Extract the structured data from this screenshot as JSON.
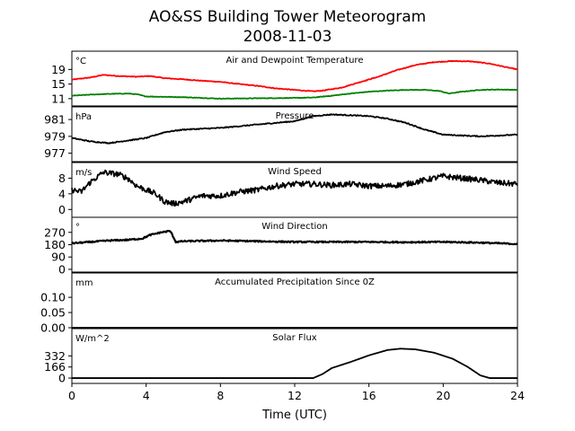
{
  "figure": {
    "title_line1": "AO&SS Building Tower Meteorogram",
    "title_line2": "2008-11-03",
    "xlabel": "Time (UTC)"
  },
  "chart_data": {
    "type": "line",
    "x_axis": {
      "label": "Time (UTC)",
      "range": [
        0,
        24
      ],
      "ticks": [
        0,
        4,
        8,
        12,
        16,
        20,
        24
      ]
    },
    "panels": [
      {
        "id": "temp",
        "title": "Air and Dewpoint Temperature",
        "unit": "°C",
        "ylim": [
          9,
          24
        ],
        "yticks": [
          11,
          15,
          19
        ],
        "series": [
          {
            "color": "#ff0000",
            "noise": 0.1,
            "points": [
              [
                0,
                16.2
              ],
              [
                1,
                16.8
              ],
              [
                1.7,
                17.5
              ],
              [
                2.5,
                17.2
              ],
              [
                3.5,
                17.0
              ],
              [
                4.2,
                17.2
              ],
              [
                5,
                16.6
              ],
              [
                6,
                16.3
              ],
              [
                7,
                15.9
              ],
              [
                8,
                15.6
              ],
              [
                9,
                15.0
              ],
              [
                10,
                14.5
              ],
              [
                11,
                13.8
              ],
              [
                12,
                13.4
              ],
              [
                13,
                13.0
              ],
              [
                13.5,
                13.2
              ],
              [
                14.5,
                14.0
              ],
              [
                15.5,
                15.5
              ],
              [
                16.5,
                17.0
              ],
              [
                17.5,
                18.8
              ],
              [
                18.5,
                20.2
              ],
              [
                19.5,
                21.0
              ],
              [
                20.5,
                21.3
              ],
              [
                21.5,
                21.2
              ],
              [
                22.5,
                20.6
              ],
              [
                23.5,
                19.5
              ],
              [
                24,
                19.0
              ]
            ]
          },
          {
            "color": "#008000",
            "noise": 0.08,
            "points": [
              [
                0,
                11.8
              ],
              [
                1,
                12.1
              ],
              [
                2,
                12.3
              ],
              [
                3,
                12.4
              ],
              [
                3.5,
                12.2
              ],
              [
                4,
                11.6
              ],
              [
                5,
                11.5
              ],
              [
                6,
                11.4
              ],
              [
                7,
                11.2
              ],
              [
                8,
                11.0
              ],
              [
                10,
                11.1
              ],
              [
                12,
                11.2
              ],
              [
                13,
                11.3
              ],
              [
                14,
                11.8
              ],
              [
                15,
                12.4
              ],
              [
                16,
                12.9
              ],
              [
                17,
                13.2
              ],
              [
                18,
                13.4
              ],
              [
                19,
                13.4
              ],
              [
                19.8,
                13.1
              ],
              [
                20.3,
                12.4
              ],
              [
                21,
                12.9
              ],
              [
                22,
                13.4
              ],
              [
                23,
                13.5
              ],
              [
                24,
                13.4
              ]
            ]
          }
        ]
      },
      {
        "id": "pressure",
        "title": "Pressure",
        "unit": "hPa",
        "ylim": [
          976,
          982.5
        ],
        "yticks": [
          977,
          979,
          981
        ],
        "series": [
          {
            "color": "#000000",
            "noise": 0.06,
            "points": [
              [
                0,
                978.8
              ],
              [
                1,
                978.4
              ],
              [
                2,
                978.2
              ],
              [
                3,
                978.5
              ],
              [
                4,
                978.8
              ],
              [
                5,
                979.5
              ],
              [
                6,
                979.8
              ],
              [
                7,
                979.9
              ],
              [
                8,
                980.0
              ],
              [
                9,
                980.2
              ],
              [
                10,
                980.4
              ],
              [
                11,
                980.6
              ],
              [
                12,
                980.8
              ],
              [
                13,
                981.4
              ],
              [
                14,
                981.6
              ],
              [
                15,
                981.5
              ],
              [
                16,
                981.4
              ],
              [
                17,
                981.1
              ],
              [
                18,
                980.6
              ],
              [
                19,
                979.8
              ],
              [
                20,
                979.2
              ],
              [
                21,
                979.1
              ],
              [
                22,
                979.0
              ],
              [
                23,
                979.1
              ],
              [
                24,
                979.2
              ]
            ]
          }
        ]
      },
      {
        "id": "wind_speed",
        "title": "Wind Speed",
        "unit": "m/s",
        "ylim": [
          -2,
          12
        ],
        "yticks": [
          0,
          4,
          8
        ],
        "series": [
          {
            "color": "#000000",
            "noise": 0.7,
            "points": [
              [
                0,
                5
              ],
              [
                0.5,
                4.5
              ],
              [
                1,
                7
              ],
              [
                1.7,
                9.5
              ],
              [
                2.5,
                9
              ],
              [
                3,
                8
              ],
              [
                3.5,
                6
              ],
              [
                4,
                5
              ],
              [
                4.5,
                4
              ],
              [
                5,
                2
              ],
              [
                5.5,
                1.5
              ],
              [
                6,
                2
              ],
              [
                7,
                3.5
              ],
              [
                8,
                3.5
              ],
              [
                9,
                4.5
              ],
              [
                10,
                5
              ],
              [
                11,
                6
              ],
              [
                12,
                6.5
              ],
              [
                13,
                6.5
              ],
              [
                14,
                6.2
              ],
              [
                15,
                6.5
              ],
              [
                16,
                6
              ],
              [
                17,
                6
              ],
              [
                18,
                6.5
              ],
              [
                19,
                7.5
              ],
              [
                20,
                8.5
              ],
              [
                21,
                8
              ],
              [
                22,
                7.5
              ],
              [
                23,
                6.8
              ],
              [
                24,
                6.5
              ]
            ]
          }
        ]
      },
      {
        "id": "wind_dir",
        "title": "Wind Direction",
        "unit": "°",
        "ylim": [
          -20,
          380
        ],
        "yticks": [
          0,
          90,
          180,
          270
        ],
        "series": [
          {
            "color": "#000000",
            "noise": 5,
            "points": [
              [
                0,
                190
              ],
              [
                1,
                200
              ],
              [
                2,
                210
              ],
              [
                3,
                215
              ],
              [
                3.8,
                225
              ],
              [
                4.2,
                250
              ],
              [
                4.8,
                270
              ],
              [
                5.3,
                280
              ],
              [
                5.6,
                200
              ],
              [
                6,
                205
              ],
              [
                8,
                210
              ],
              [
                10,
                205
              ],
              [
                12,
                200
              ],
              [
                14,
                200
              ],
              [
                16,
                200
              ],
              [
                18,
                198
              ],
              [
                20,
                200
              ],
              [
                22,
                195
              ],
              [
                24,
                185
              ]
            ]
          }
        ]
      },
      {
        "id": "precip",
        "title": "Accumulated Precipitation Since 0Z",
        "unit": "mm",
        "ylim": [
          0,
          0.18
        ],
        "yticks": [
          0.0,
          0.05,
          0.1
        ],
        "ytick_labels": [
          "0.00",
          "0.05",
          "0.10"
        ],
        "series": [
          {
            "color": "#000000",
            "noise": 0,
            "points": [
              [
                0,
                0
              ],
              [
                24,
                0
              ]
            ]
          }
        ]
      },
      {
        "id": "solar",
        "title": "Solar Flux",
        "unit": "W/m^2",
        "ylim": [
          -80,
          740
        ],
        "yticks": [
          0,
          166,
          332
        ],
        "series": [
          {
            "color": "#000000",
            "noise": 0,
            "points": [
              [
                0,
                0
              ],
              [
                13,
                0
              ],
              [
                13.5,
                60
              ],
              [
                14,
                150
              ],
              [
                15,
                240
              ],
              [
                16,
                340
              ],
              [
                17,
                420
              ],
              [
                17.7,
                440
              ],
              [
                18.5,
                430
              ],
              [
                19.5,
                380
              ],
              [
                20.5,
                290
              ],
              [
                21.3,
                170
              ],
              [
                22,
                40
              ],
              [
                22.5,
                0
              ],
              [
                24,
                0
              ]
            ]
          }
        ]
      }
    ]
  }
}
